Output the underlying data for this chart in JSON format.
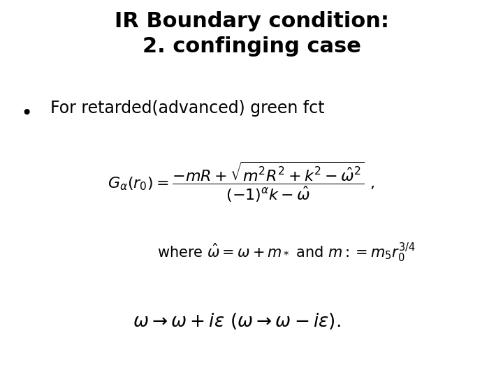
{
  "title_line1": "IR Boundary condition:",
  "title_line2": "2. confinging case",
  "title_fontsize": 22,
  "title_color": "#000000",
  "bullet_text": "For retarded(advanced) green fct",
  "bullet_fontsize": 17,
  "formula1_fontsize": 16,
  "formula2_fontsize": 15,
  "formula3_fontsize": 19,
  "background_color": "#ffffff"
}
